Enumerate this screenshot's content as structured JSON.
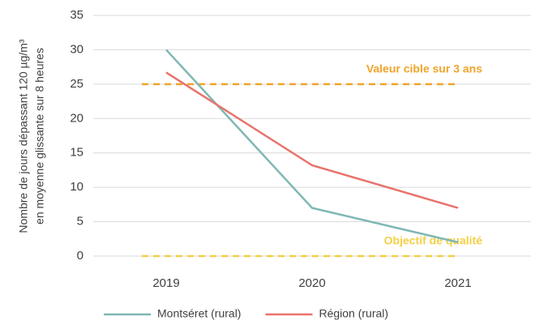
{
  "chart_data": {
    "type": "line",
    "y_axis_label": [
      "Nombre de jours dépassant 120 µg/m³",
      "en moyenne glissante sur 8 heures"
    ],
    "categories": [
      "2019",
      "2020",
      "2021"
    ],
    "series": [
      {
        "name": "Montséret (rural)",
        "color": "#7fb8b4",
        "values": [
          30,
          7,
          2
        ]
      },
      {
        "name": "Région (rural)",
        "color": "#e8736c",
        "values": [
          26.7,
          13.2,
          7
        ]
      }
    ],
    "reference_lines": [
      {
        "label": "Valeur cible sur 3 ans",
        "value": 25,
        "color": "#f0a428"
      },
      {
        "label": "Objectif de qualité",
        "value": 0,
        "color": "#f3cf45"
      }
    ],
    "ylim": [
      0,
      35
    ],
    "yticks": [
      0,
      5,
      10,
      15,
      20,
      25,
      30,
      35
    ],
    "grid": true,
    "legend": "bottom"
  }
}
